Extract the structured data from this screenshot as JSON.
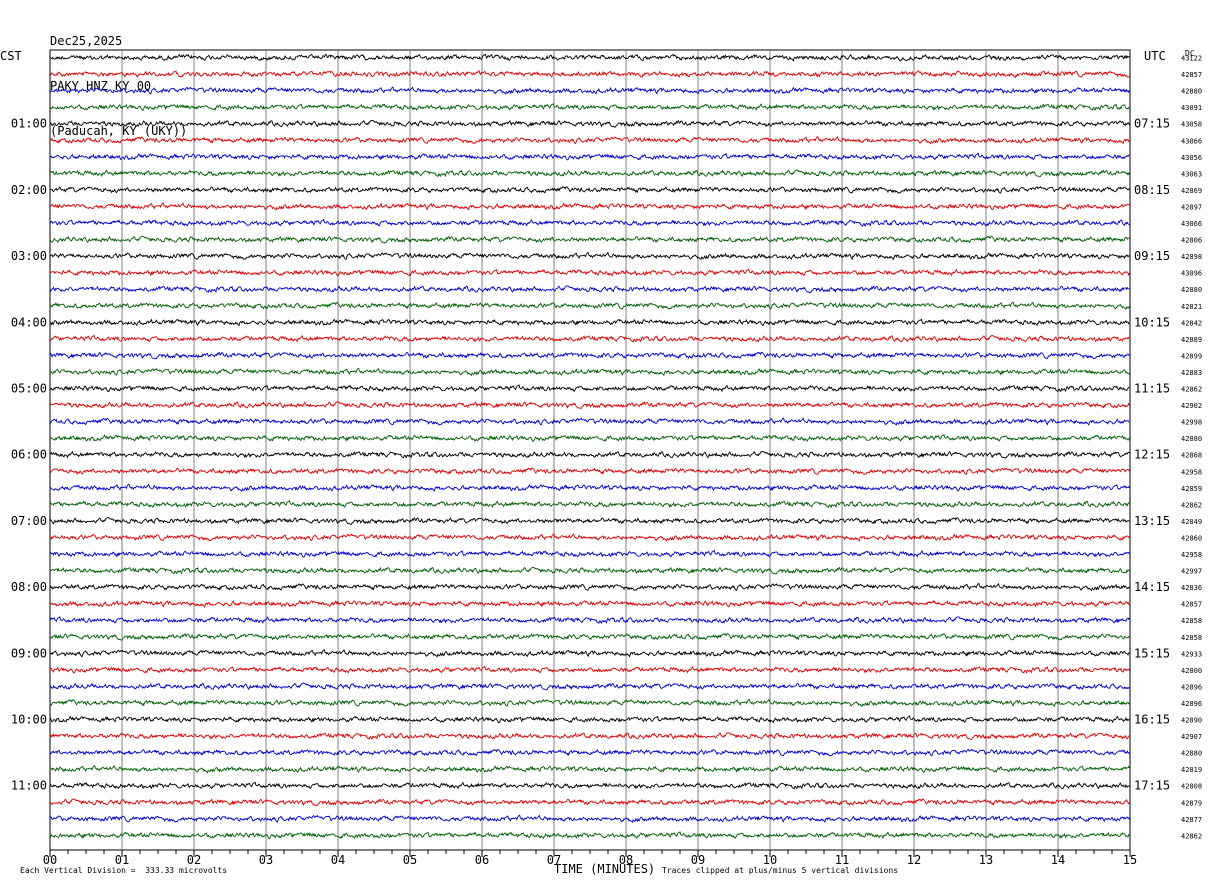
{
  "header": {
    "date": "Dec25,2025",
    "station": "PAKY HNZ KY 00",
    "location": "(Paducah, KY (UKY))"
  },
  "left_zone_label": "CST",
  "right_zone_label": "UTC",
  "dc_label": "DC",
  "footer": {
    "scale_note": "Each Vertical Division =  333.33 microvolts",
    "xlabel": "TIME (MINUTES)",
    "clip_note": "Traces clipped at plus/minus 5 vertical divisions"
  },
  "chart_data": {
    "type": "line",
    "title": "PAKY HNZ KY 00",
    "xlabel": "TIME (MINUTES)",
    "xlim": [
      0,
      15
    ],
    "x_ticks": [
      "00",
      "01",
      "02",
      "03",
      "04",
      "05",
      "06",
      "07",
      "08",
      "09",
      "10",
      "11",
      "12",
      "13",
      "14",
      "15"
    ],
    "grid": true,
    "trace_colors": [
      "#000000",
      "#e00000",
      "#0000d0",
      "#006000"
    ],
    "trace_count": 48,
    "left_hour_labels": [
      "01:00",
      "02:00",
      "03:00",
      "04:00",
      "05:00",
      "06:00",
      "07:00",
      "08:00",
      "09:00",
      "10:00",
      "11:00"
    ],
    "right_hour_labels": [
      "07:15",
      "08:15",
      "09:15",
      "10:15",
      "11:15",
      "12:15",
      "13:15",
      "14:15",
      "15:15",
      "16:15",
      "17:15"
    ],
    "dc_offsets": [
      "43122",
      "42857",
      "42880",
      "43091",
      "43058",
      "43066",
      "43056",
      "43063",
      "42869",
      "42897",
      "43066",
      "42806",
      "42898",
      "43096",
      "42880",
      "42821",
      "42842",
      "42889",
      "42899",
      "42883",
      "42862",
      "42902",
      "42998",
      "42880",
      "42868",
      "42958",
      "42859",
      "42862",
      "42849",
      "42860",
      "42958",
      "42997",
      "42836",
      "42857",
      "42858",
      "42858",
      "42933",
      "42800",
      "42896",
      "42896",
      "42890",
      "42907",
      "42880",
      "42819",
      "42808",
      "42879",
      "42877",
      "42862"
    ]
  }
}
